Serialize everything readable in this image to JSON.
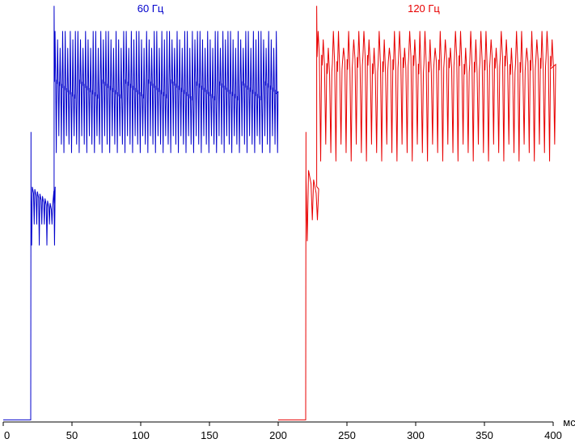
{
  "chart_data": {
    "type": "line",
    "title": "",
    "xlabel": "",
    "ylabel": "",
    "x_unit": "мс",
    "xlim": [
      0,
      400
    ],
    "ylim": [
      0,
      1
    ],
    "x_ticks": [
      0,
      50,
      100,
      150,
      200,
      250,
      300,
      350,
      400
    ],
    "y_ticks": [],
    "grid": false,
    "legend": "none",
    "series": [
      {
        "name": "60 Гц",
        "color": "#0000cc",
        "x_range": [
          0,
          200
        ],
        "baseline": 0.005,
        "turn_on_ms": 20,
        "step_ms": 37,
        "first_level": 0.52,
        "first_band": [
          0.43,
          0.69
        ],
        "settled_level": 0.78,
        "settled_band": [
          0.62,
          0.93
        ],
        "peak": 0.99,
        "pulse_period_ms": 1.85,
        "frame_period_ms": 16.7
      },
      {
        "name": "120 Гц",
        "color": "#e80000",
        "x_range": [
          200,
          400
        ],
        "baseline": 0.005,
        "turn_on_ms": 220,
        "step_ms": 228,
        "first_level": 0.56,
        "first_band": [
          0.44,
          0.69
        ],
        "settled_level": 0.84,
        "settled_band": [
          0.6,
          0.93
        ],
        "peak": 0.99,
        "pulse_period_ms": 3.7,
        "frame_period_ms": 8.3
      }
    ]
  }
}
